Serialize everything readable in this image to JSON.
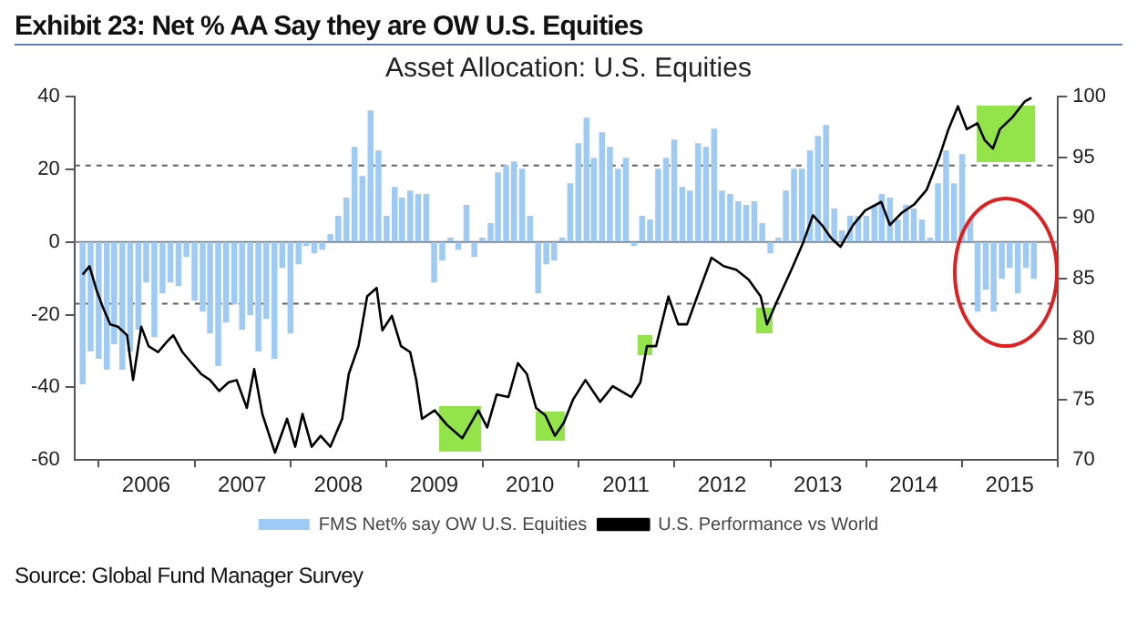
{
  "chart_data": {
    "type": "bar",
    "title": "Exhibit 23: Net % AA Say they are OW U.S. Equities",
    "subtitle": "Asset Allocation: U.S. Equities",
    "annotations": [
      "Source: Global Fund Manager Survey"
    ],
    "xlim": [
      "2005-10",
      "2016-01"
    ],
    "xticks": [
      {
        "value": "2006",
        "label": null
      },
      {
        "value": "2006-07",
        "label": "2006"
      },
      {
        "value": "2007",
        "label": null
      },
      {
        "value": "2007-07",
        "label": "2007"
      },
      {
        "value": "2008",
        "label": null
      },
      {
        "value": "2008-07",
        "label": "2008"
      },
      {
        "value": "2009",
        "label": null
      },
      {
        "value": "2009-07",
        "label": "2009"
      },
      {
        "value": "2010",
        "label": null
      },
      {
        "value": "2010-07",
        "label": "2010"
      },
      {
        "value": "2011",
        "label": null
      },
      {
        "value": "2011-07",
        "label": "2011"
      },
      {
        "value": "2012",
        "label": null
      },
      {
        "value": "2012-07",
        "label": "2012"
      },
      {
        "value": "2013",
        "label": null
      },
      {
        "value": "2013-07",
        "label": "2013"
      },
      {
        "value": "2014",
        "label": null
      },
      {
        "value": "2014-07",
        "label": "2014"
      },
      {
        "value": "2015",
        "label": null
      },
      {
        "value": "2015-07",
        "label": "2015"
      },
      {
        "value": "2016",
        "label": null
      }
    ],
    "ylim": [
      -60,
      40
    ],
    "yticks": [
      -60,
      -40,
      -20,
      0,
      20,
      40
    ],
    "y2lim": [
      70,
      100
    ],
    "y2ticks": [
      70,
      75,
      80,
      85,
      90,
      95,
      100
    ],
    "grid": false,
    "legend": "bottom",
    "marker": "none",
    "ref_lines": [
      {
        "axis": "y",
        "value": 0,
        "line_style": "solid",
        "color": "#808080"
      },
      {
        "axis": "y",
        "value": 21,
        "line_style": "dashed",
        "color": "#606060"
      },
      {
        "axis": "y",
        "value": -17,
        "line_style": "dashed",
        "color": "#606060"
      }
    ],
    "series": [
      {
        "name": "FMS Net% say OW U.S. Equities",
        "color": "#9ecbf5",
        "x": [
          "2005-11",
          "2005-12",
          "2006-01",
          "2006-02",
          "2006-03",
          "2006-04",
          "2006-05",
          "2006-06",
          "2006-07",
          "2006-08",
          "2006-09",
          "2006-10",
          "2006-11",
          "2006-12",
          "2007-01",
          "2007-02",
          "2007-03",
          "2007-04",
          "2007-05",
          "2007-06",
          "2007-07",
          "2007-08",
          "2007-09",
          "2007-10",
          "2007-11",
          "2007-12",
          "2008-01",
          "2008-02",
          "2008-03",
          "2008-04",
          "2008-05",
          "2008-06",
          "2008-07",
          "2008-08",
          "2008-09",
          "2008-10",
          "2008-11",
          "2008-12",
          "2009-01",
          "2009-02",
          "2009-03",
          "2009-04",
          "2009-05",
          "2009-06",
          "2009-07",
          "2009-08",
          "2009-09",
          "2009-10",
          "2009-11",
          "2009-12",
          "2010-01",
          "2010-02",
          "2010-03",
          "2010-04",
          "2010-05",
          "2010-06",
          "2010-07",
          "2010-08",
          "2010-09",
          "2010-10",
          "2010-11",
          "2010-12",
          "2011-01",
          "2011-02",
          "2011-03",
          "2011-04",
          "2011-05",
          "2011-06",
          "2011-07",
          "2011-08",
          "2011-09",
          "2011-10",
          "2011-11",
          "2011-12",
          "2012-01",
          "2012-02",
          "2012-03",
          "2012-04",
          "2012-05",
          "2012-06",
          "2012-07",
          "2012-08",
          "2012-09",
          "2012-10",
          "2012-11",
          "2012-12",
          "2013-01",
          "2013-02",
          "2013-03",
          "2013-04",
          "2013-05",
          "2013-06",
          "2013-07",
          "2013-08",
          "2013-09",
          "2013-10",
          "2013-11",
          "2013-12",
          "2014-01",
          "2014-02",
          "2014-03",
          "2014-04",
          "2014-05",
          "2014-06",
          "2014-07",
          "2014-08",
          "2014-09",
          "2014-10",
          "2014-11",
          "2014-12",
          "2015-01",
          "2015-02",
          "2015-03",
          "2015-04",
          "2015-05",
          "2015-06",
          "2015-07",
          "2015-08",
          "2015-09",
          "2015-10"
        ],
        "values": [
          -39,
          -30,
          -32,
          -35,
          -28,
          -35,
          -30,
          -24,
          -11,
          -26,
          -14,
          -11,
          -12,
          -4,
          -16,
          -19,
          -25,
          -34,
          -22,
          -17,
          -24,
          -20,
          -30,
          -21,
          -32,
          -7,
          -25,
          -6,
          -1,
          -3,
          -2,
          2,
          7,
          12,
          26,
          18,
          36,
          25,
          7,
          15,
          12,
          14,
          13,
          13,
          -11,
          -5,
          1,
          -2,
          10,
          -4,
          1,
          5,
          19,
          21,
          22,
          20,
          7,
          -14,
          -6,
          -5,
          1,
          16,
          27,
          34,
          23,
          30,
          26,
          20,
          23,
          -1,
          7,
          6,
          20,
          23,
          28,
          15,
          14,
          27,
          26,
          31,
          14,
          13,
          11,
          10,
          11,
          5,
          -3,
          1,
          14,
          20,
          20,
          25,
          29,
          32,
          9,
          3,
          7,
          7,
          7,
          10,
          13,
          12,
          6,
          10,
          9,
          6,
          1,
          16,
          25,
          16,
          24,
          6,
          -19,
          -13,
          -19,
          -10,
          -7,
          -14,
          -7,
          -10
        ]
      },
      {
        "name": "U.S. Performance vs World",
        "type": "line",
        "axis": "y2",
        "color": "#000000",
        "line_style": "solid",
        "x": [
          "2005-11-01",
          "2005-11-27",
          "2005-12-24",
          "2006-01-17",
          "2006-02-14",
          "2006-03-15",
          "2006-04-19",
          "2006-05-12",
          "2006-06-12",
          "2006-07-10",
          "2006-08-15",
          "2006-09-19",
          "2006-10-12",
          "2006-11-16",
          "2006-12-21",
          "2007-01-26",
          "2007-03-01",
          "2007-04-05",
          "2007-05-10",
          "2007-06-10",
          "2007-07-19",
          "2007-08-16",
          "2007-09-16",
          "2007-11-03",
          "2007-12-19",
          "2008-01-19",
          "2008-02-16",
          "2008-03-22",
          "2008-04-25",
          "2008-06-01",
          "2008-07-16",
          "2008-08-10",
          "2008-09-16",
          "2008-10-19",
          "2008-11-24",
          "2008-12-16",
          "2009-01-21",
          "2009-02-25",
          "2009-04-01",
          "2009-04-24",
          "2009-05-16",
          "2009-07-03",
          "2009-08-19",
          "2009-10-16",
          "2009-12-16",
          "2010-01-19",
          "2010-02-24",
          "2010-04-10",
          "2010-05-16",
          "2010-06-19",
          "2010-07-24",
          "2010-08-28",
          "2010-10-04",
          "2010-11-07",
          "2010-12-12",
          "2011-01-28",
          "2011-03-25",
          "2011-05-12",
          "2011-07-22",
          "2011-08-25",
          "2011-09-19",
          "2011-10-24",
          "2011-12-10",
          "2012-01-16",
          "2012-02-19",
          "2012-04-06",
          "2012-05-22",
          "2012-07-07",
          "2012-08-24",
          "2012-10-10",
          "2012-11-25",
          "2012-12-19",
          "2013-01-24",
          "2013-03-22",
          "2013-05-07",
          "2013-06-12",
          "2013-07-16",
          "2013-08-21",
          "2013-09-25",
          "2013-11-12",
          "2013-12-28",
          "2014-02-27",
          "2014-04-01",
          "2014-05-16",
          "2014-07-03",
          "2014-08-19",
          "2014-10-06",
          "2014-11-10",
          "2014-12-16",
          "2015-01-19",
          "2015-02-28",
          "2015-03-28",
          "2015-04-28",
          "2015-05-25",
          "2015-07-12",
          "2015-08-28",
          "2015-09-22"
        ],
        "values": [
          85.3,
          86.0,
          84.0,
          82.6,
          81.2,
          81.0,
          80.3,
          76.6,
          81.0,
          79.4,
          78.9,
          79.8,
          80.3,
          78.9,
          78.0,
          77.1,
          76.6,
          75.7,
          76.4,
          76.6,
          74.3,
          77.5,
          73.8,
          70.6,
          73.4,
          71.1,
          73.8,
          71.1,
          72.0,
          71.1,
          73.4,
          77.1,
          79.4,
          83.5,
          84.2,
          80.7,
          81.9,
          79.4,
          78.9,
          76.6,
          73.4,
          74.1,
          72.9,
          71.8,
          74.1,
          72.7,
          75.4,
          75.2,
          78.0,
          77.1,
          74.3,
          73.7,
          72.0,
          73.1,
          75.0,
          76.6,
          74.8,
          76.1,
          75.2,
          76.4,
          79.4,
          79.4,
          83.5,
          81.2,
          81.2,
          84.0,
          86.7,
          86.0,
          85.7,
          84.9,
          83.5,
          81.2,
          83.0,
          85.7,
          88.0,
          90.2,
          89.4,
          88.3,
          87.6,
          89.4,
          90.6,
          91.3,
          89.4,
          90.4,
          91.1,
          92.3,
          95.0,
          97.3,
          99.2,
          97.3,
          97.8,
          96.4,
          95.7,
          97.3,
          98.3,
          99.6,
          99.9
        ]
      }
    ]
  }
}
